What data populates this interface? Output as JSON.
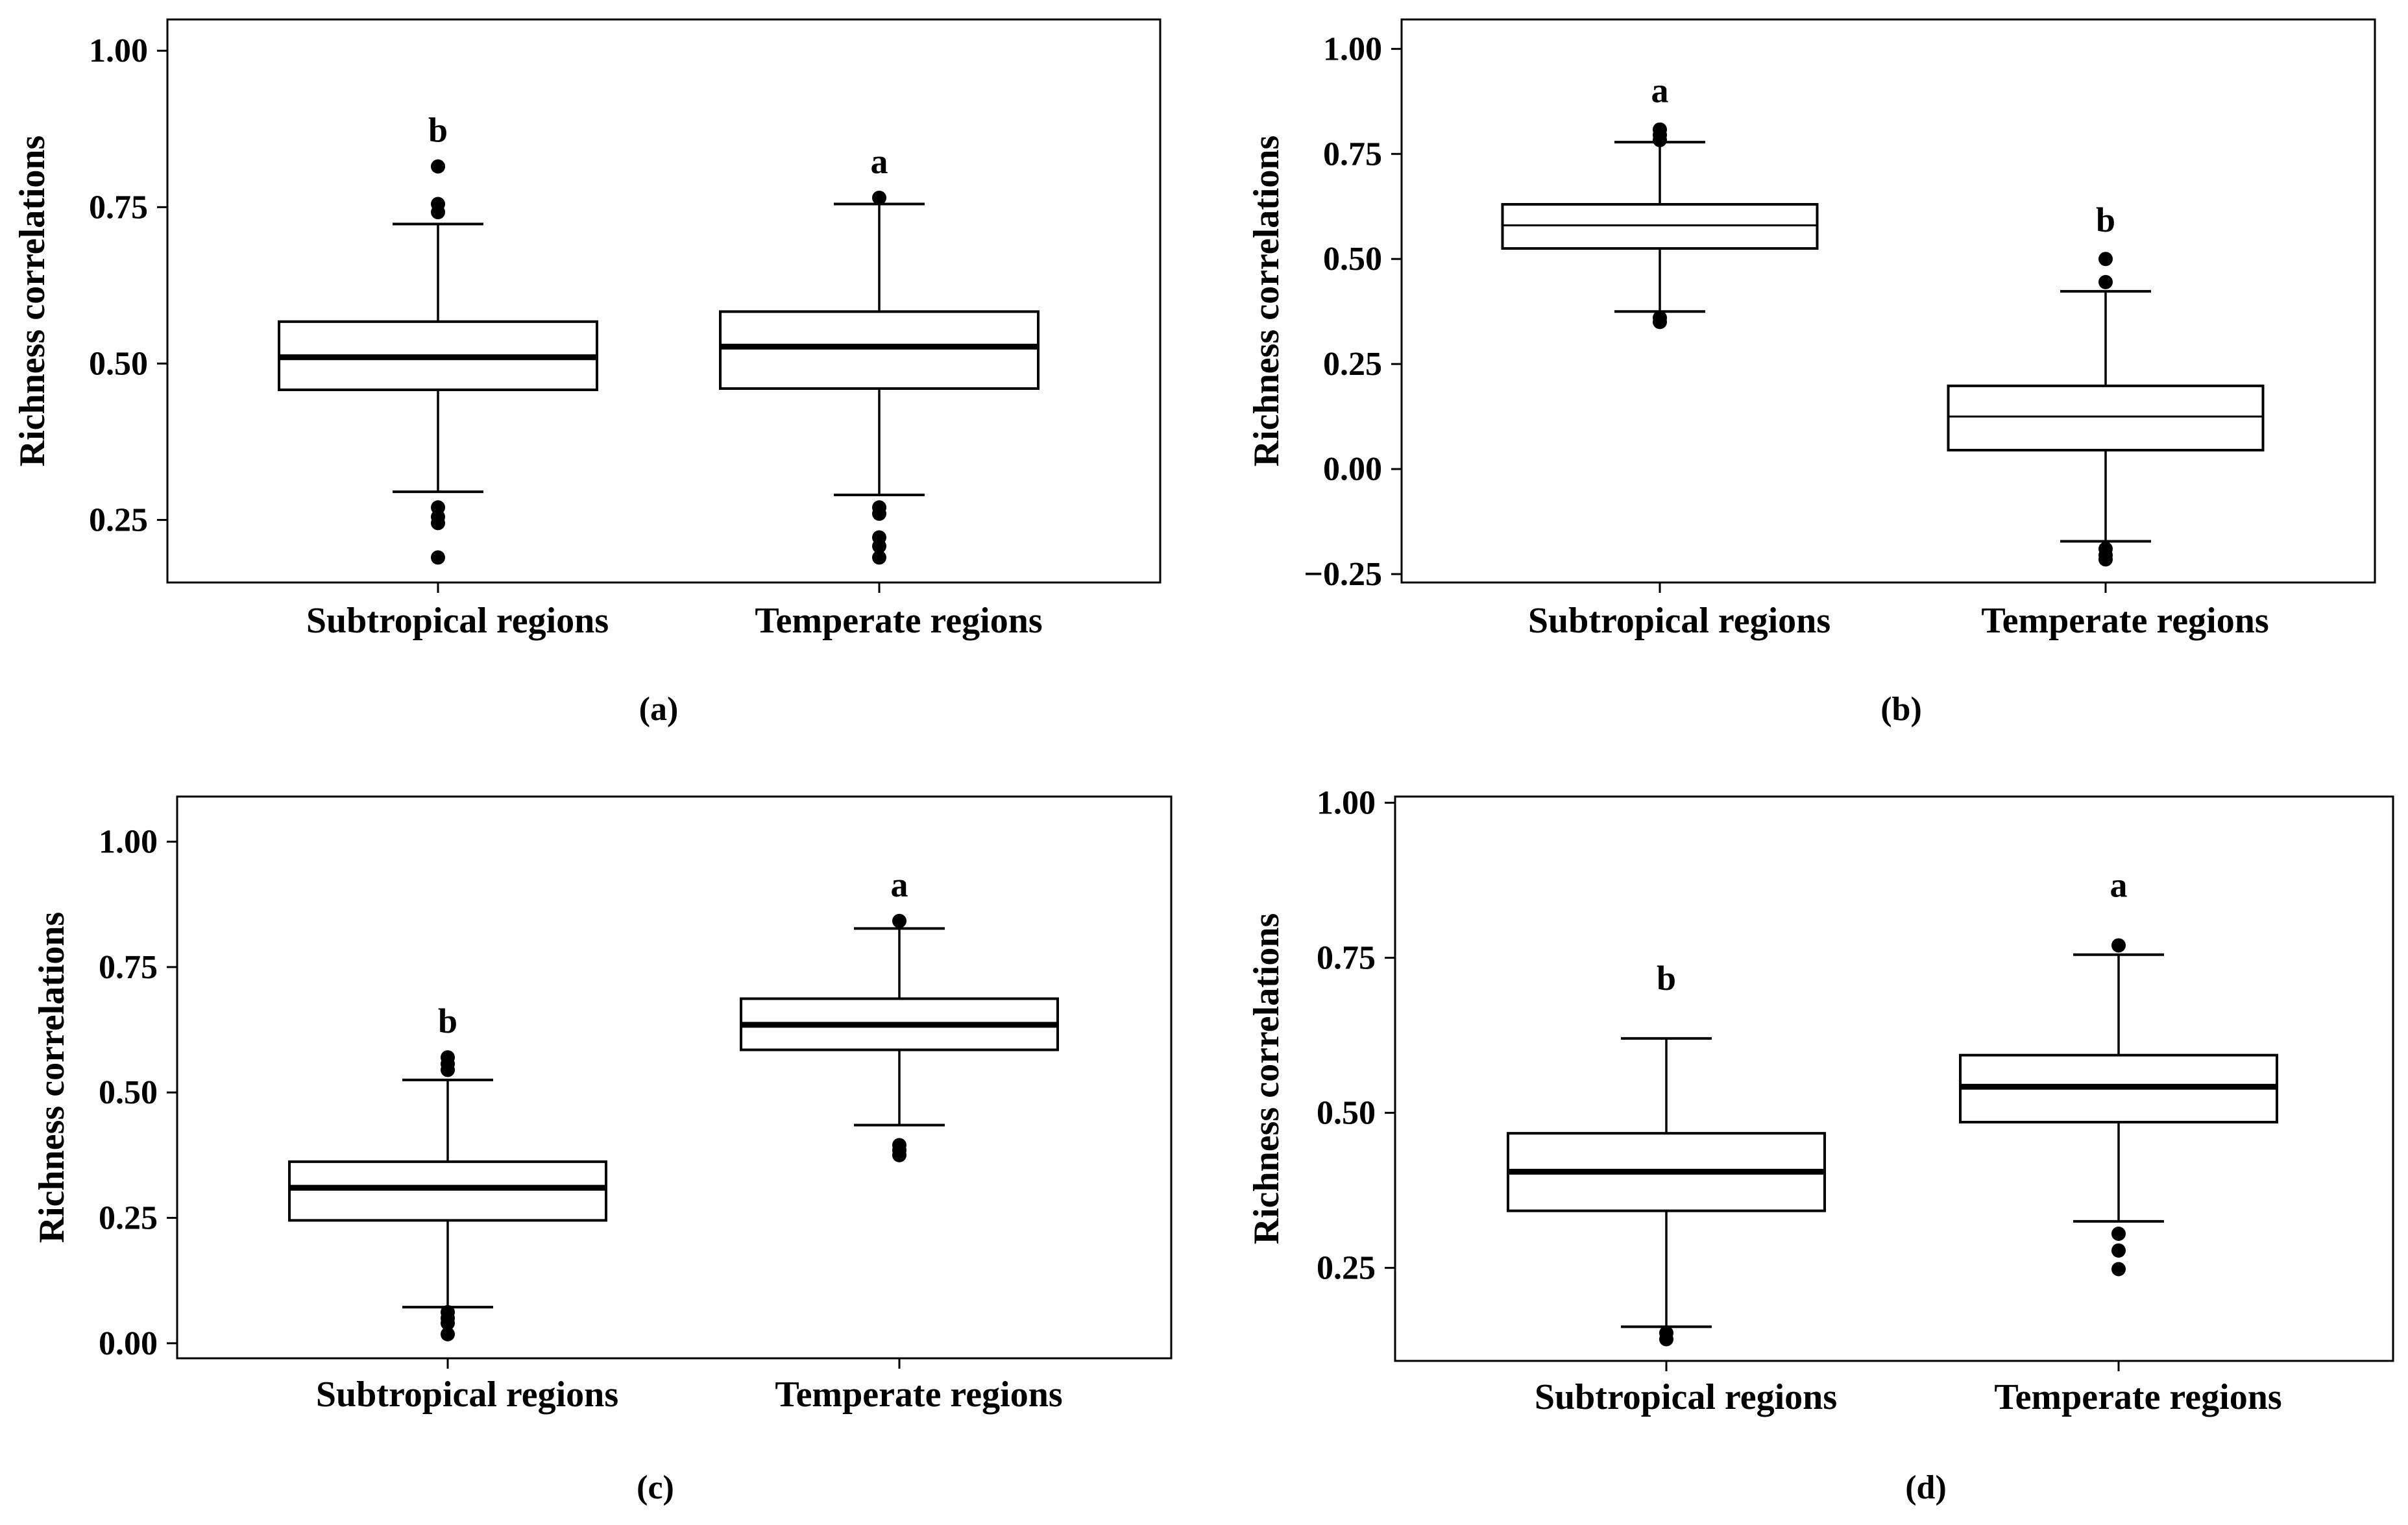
{
  "chart_data": [
    {
      "id": "a",
      "type": "boxplot",
      "panel_label": "(a)",
      "ylabel": "Richness correlations",
      "ylim": [
        0.15,
        1.05
      ],
      "yticks": [
        0.25,
        0.5,
        0.75,
        1.0
      ],
      "ytick_labels": [
        "0.25",
        "0.50",
        "0.75",
        "1.00"
      ],
      "categories": [
        "Subtropical regions",
        "Temperate regions"
      ],
      "boxes": [
        {
          "category": "Subtropical regions",
          "letter": "b",
          "whisker_low": 0.295,
          "q1": 0.458,
          "median": 0.51,
          "q3": 0.567,
          "whisker_high": 0.723,
          "outliers": [
            0.815,
            0.755,
            0.742,
            0.27,
            0.255,
            0.245,
            0.19
          ],
          "median_style": "thick"
        },
        {
          "category": "Temperate regions",
          "letter": "a",
          "whisker_low": 0.29,
          "q1": 0.46,
          "median": 0.527,
          "q3": 0.583,
          "whisker_high": 0.755,
          "outliers": [
            0.765,
            0.27,
            0.26,
            0.222,
            0.208,
            0.19
          ],
          "median_style": "thick"
        }
      ]
    },
    {
      "id": "b",
      "type": "boxplot",
      "panel_label": "(b)",
      "ylabel": "Richness correlations",
      "ylim": [
        -0.27,
        1.07
      ],
      "yticks": [
        -0.25,
        0.0,
        0.25,
        0.5,
        0.75,
        1.0
      ],
      "ytick_labels": [
        "−0.25",
        "0.00",
        "0.25",
        "0.50",
        "0.75",
        "1.00"
      ],
      "categories": [
        "Subtropical regions",
        "Temperate regions"
      ],
      "boxes": [
        {
          "category": "Subtropical regions",
          "letter": "a",
          "whisker_low": 0.375,
          "q1": 0.525,
          "median": 0.58,
          "q3": 0.63,
          "whisker_high": 0.778,
          "outliers": [
            0.808,
            0.795,
            0.783,
            0.36,
            0.35
          ],
          "median_style": "thin"
        },
        {
          "category": "Temperate regions",
          "letter": "b",
          "whisker_low": -0.172,
          "q1": 0.045,
          "median": 0.125,
          "q3": 0.198,
          "whisker_high": 0.423,
          "outliers": [
            0.5,
            0.445,
            -0.19,
            -0.205,
            -0.215
          ],
          "median_style": "thin"
        }
      ]
    },
    {
      "id": "c",
      "type": "boxplot",
      "panel_label": "(c)",
      "ylabel": "Richness correlations",
      "ylim": [
        -0.03,
        1.09
      ],
      "yticks": [
        0.0,
        0.25,
        0.5,
        0.75,
        1.0
      ],
      "ytick_labels": [
        "0.00",
        "0.25",
        "0.50",
        "0.75",
        "1.00"
      ],
      "categories": [
        "Subtropical regions",
        "Temperate regions"
      ],
      "boxes": [
        {
          "category": "Subtropical regions",
          "letter": "b",
          "whisker_low": 0.072,
          "q1": 0.245,
          "median": 0.31,
          "q3": 0.362,
          "whisker_high": 0.525,
          "outliers": [
            0.57,
            0.557,
            0.545,
            0.062,
            0.05,
            0.04,
            0.018
          ],
          "median_style": "thick"
        },
        {
          "category": "Temperate regions",
          "letter": "a",
          "whisker_low": 0.435,
          "q1": 0.585,
          "median": 0.635,
          "q3": 0.687,
          "whisker_high": 0.827,
          "outliers": [
            0.842,
            0.395,
            0.385,
            0.375
          ],
          "median_style": "thick"
        }
      ]
    },
    {
      "id": "d",
      "type": "boxplot",
      "panel_label": "(d)",
      "ylabel": "Richness correlations",
      "ylim": [
        0.1,
        1.01
      ],
      "yticks": [
        0.25,
        0.5,
        0.75,
        1.0
      ],
      "ytick_labels": [
        "0.25",
        "0.50",
        "0.75",
        "1.00"
      ],
      "categories": [
        "Subtropical regions",
        "Temperate regions"
      ],
      "boxes": [
        {
          "category": "Subtropical regions",
          "letter": "b",
          "whisker_low": 0.155,
          "q1": 0.342,
          "median": 0.405,
          "q3": 0.467,
          "whisker_high": 0.62,
          "outliers": [
            0.145,
            0.135
          ],
          "median_style": "thick"
        },
        {
          "category": "Temperate regions",
          "letter": "a",
          "whisker_low": 0.325,
          "q1": 0.485,
          "median": 0.542,
          "q3": 0.593,
          "whisker_high": 0.755,
          "outliers": [
            0.77,
            0.305,
            0.278,
            0.248
          ],
          "median_style": "thick"
        }
      ]
    }
  ]
}
